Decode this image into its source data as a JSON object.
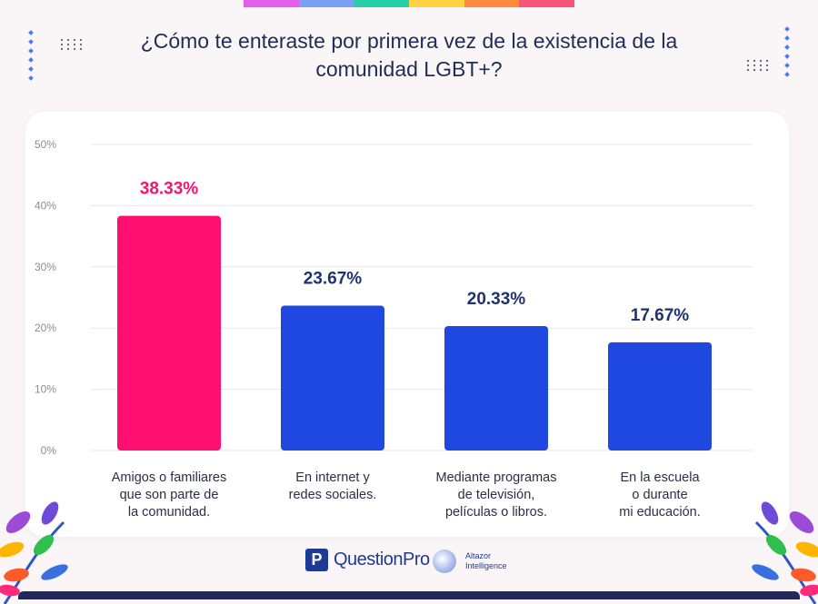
{
  "title": "¿Cómo te enteraste por primera vez de la existencia de la comunidad LGBT+?",
  "colors": {
    "highlight": "#ff0f6f",
    "bar": "#1f48e0",
    "label_dark": "#1f3270",
    "axis_text": "#8c8c99",
    "grid": "#e7e7ee",
    "stripe": [
      "#e35fe8",
      "#7aa0f5",
      "#26d0a8",
      "#ffd23f",
      "#ff8a3d",
      "#f7567c"
    ]
  },
  "chart_data": {
    "type": "bar",
    "title": "¿Cómo te enteraste por primera vez de la existencia de la comunidad LGBT+?",
    "categories": [
      [
        "Amigos o familiares",
        "que son parte de",
        "la comunidad."
      ],
      [
        "En internet y",
        "redes sociales."
      ],
      [
        "Mediante programas",
        "de televisión,",
        "películas o libros."
      ],
      [
        "En la escuela",
        "o durante",
        "mi educación."
      ]
    ],
    "values": [
      38.33,
      23.67,
      20.33,
      17.67
    ],
    "value_labels": [
      "38.33%",
      "23.67%",
      "20.33%",
      "17.67%"
    ],
    "highlight_index": 0,
    "ylim": [
      0,
      50
    ],
    "yticks": [
      0,
      10,
      20,
      30,
      40,
      50
    ],
    "ytick_labels": [
      "0%",
      "10%",
      "20%",
      "30%",
      "40%",
      "50%"
    ],
    "grid": true,
    "xlabel": "",
    "ylabel": ""
  },
  "footer": {
    "questionpro_mark": "P",
    "questionpro": "QuestionPro",
    "altazor_line1": "Altazor",
    "altazor_line2": "Intelligence"
  }
}
